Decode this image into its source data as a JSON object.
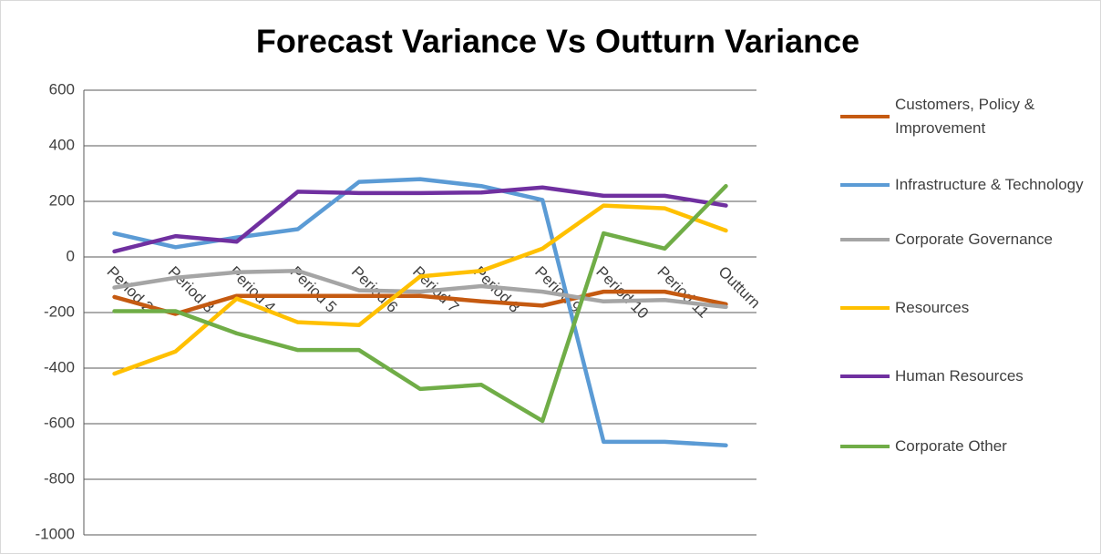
{
  "chart_data": {
    "type": "line",
    "title": "Forecast Variance Vs Outturn Variance",
    "categories": [
      "Period 2",
      "Period 3",
      "Period 4",
      "Period 5",
      "Period 6",
      "Period 7",
      "Period 8",
      "Period 9",
      "Period 10",
      "Period 11",
      "Outturn"
    ],
    "series": [
      {
        "name": "Customers, Policy & Improvement",
        "color": "#c55a11",
        "values": [
          -144,
          -205,
          -140,
          -140,
          -140,
          -140,
          -160,
          -175,
          -125,
          -125,
          -170
        ]
      },
      {
        "name": "Infrastructure & Technology",
        "color": "#5b9bd5",
        "values": [
          85,
          35,
          70,
          100,
          270,
          280,
          255,
          205,
          -665,
          -665,
          -678
        ]
      },
      {
        "name": "Corporate Governance",
        "color": "#a5a5a5",
        "values": [
          -110,
          -75,
          -55,
          -50,
          -120,
          -125,
          -105,
          -125,
          -160,
          -155,
          -180
        ]
      },
      {
        "name": "Resources",
        "color": "#ffc000",
        "values": [
          -420,
          -340,
          -150,
          -235,
          -245,
          -70,
          -50,
          30,
          185,
          175,
          95
        ]
      },
      {
        "name": "Human Resources",
        "color": "#7030a0",
        "values": [
          20,
          75,
          55,
          235,
          230,
          230,
          232,
          250,
          220,
          220,
          185
        ]
      },
      {
        "name": "Corporate Other",
        "color": "#70ad47",
        "values": [
          -195,
          -195,
          -275,
          -335,
          -335,
          -475,
          -460,
          -590,
          85,
          30,
          255
        ]
      }
    ],
    "ylim": [
      -1000,
      600
    ],
    "yticks": [
      -1000,
      -800,
      -600,
      -400,
      -200,
      0,
      200,
      400,
      600
    ],
    "grid": true,
    "legend": "right"
  }
}
